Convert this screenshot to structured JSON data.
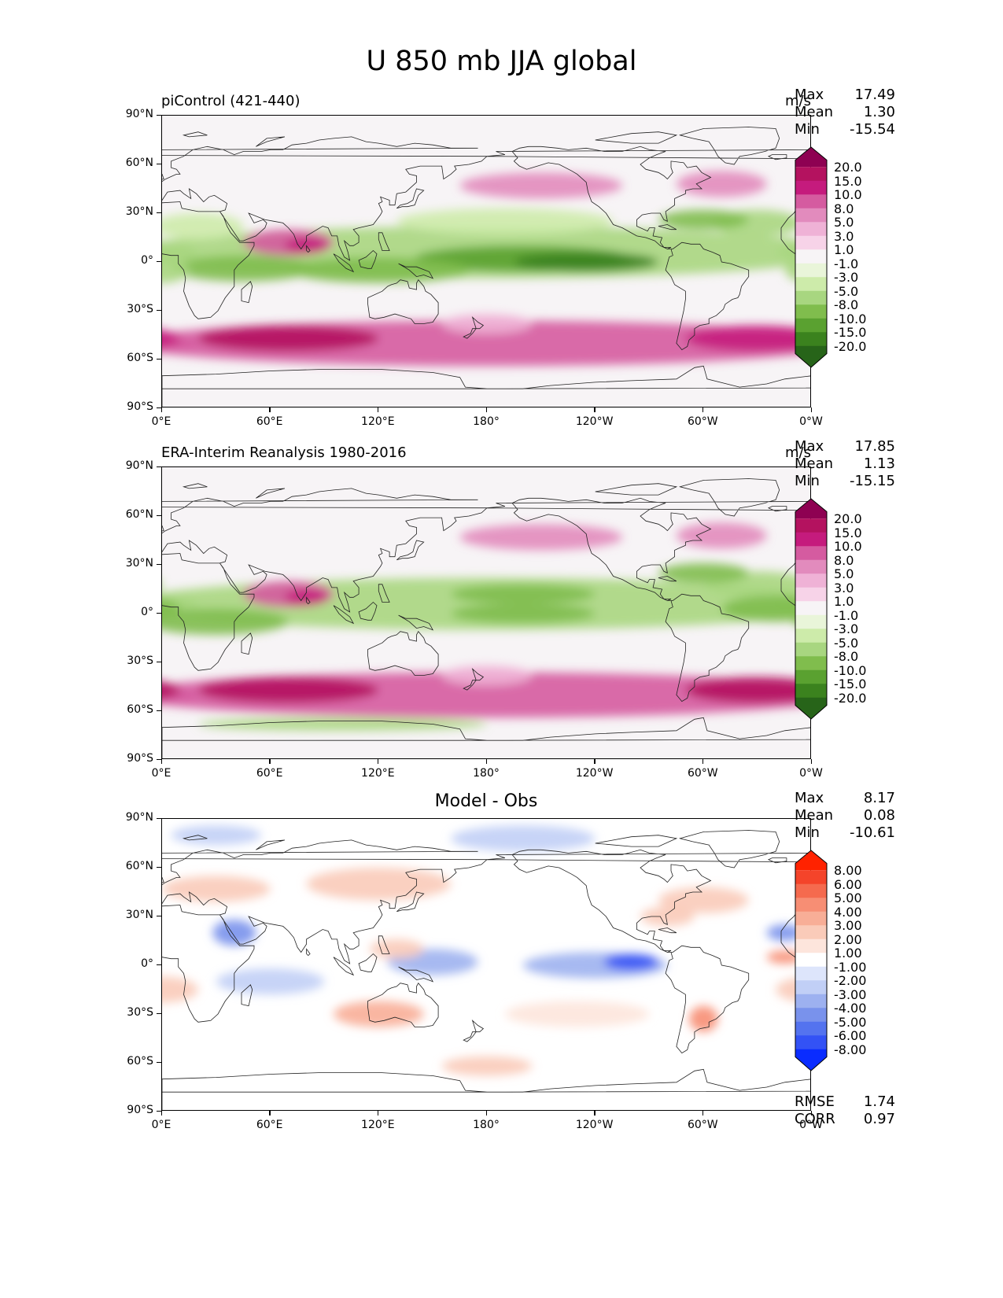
{
  "title": "U 850 mb JJA global",
  "x_ticks": [
    "0°E",
    "60°E",
    "120°E",
    "180°",
    "120°W",
    "60°W",
    "0°W"
  ],
  "y_ticks": [
    "90°N",
    "60°N",
    "30°N",
    "0°",
    "30°S",
    "60°S",
    "90°S"
  ],
  "panels": [
    {
      "id": "model",
      "title_left": "piControl (421-440)",
      "title_center": "",
      "units": "m/s",
      "stats": [
        [
          "Max",
          "17.49"
        ],
        [
          "Mean",
          "1.30"
        ],
        [
          "Min",
          "-15.54"
        ]
      ],
      "extra_stats": [],
      "colorbar": {
        "labels": [
          "20.0",
          "15.0",
          "10.0",
          "8.0",
          "5.0",
          "3.0",
          "1.0",
          "-1.0",
          "-3.0",
          "-5.0",
          "-8.0",
          "-10.0",
          "-15.0",
          "-20.0"
        ],
        "colors": [
          "#8e0152",
          "#b4125f",
          "#c51b7d",
          "#d55ba0",
          "#e28bbd",
          "#efb2d6",
          "#f7d3e8",
          "#f7f4f6",
          "#e9f5d9",
          "#cdebaa",
          "#a8d680",
          "#80bd4d",
          "#5aa130",
          "#3b821e",
          "#276419"
        ]
      }
    },
    {
      "id": "obs",
      "title_left": "ERA-Interim Reanalysis 1980-2016",
      "title_center": "",
      "units": "m/s",
      "stats": [
        [
          "Max",
          "17.85"
        ],
        [
          "Mean",
          "1.13"
        ],
        [
          "Min",
          "-15.15"
        ]
      ],
      "extra_stats": [],
      "colorbar": {
        "labels": [
          "20.0",
          "15.0",
          "10.0",
          "8.0",
          "5.0",
          "3.0",
          "1.0",
          "-1.0",
          "-3.0",
          "-5.0",
          "-8.0",
          "-10.0",
          "-15.0",
          "-20.0"
        ],
        "colors": [
          "#8e0152",
          "#b4125f",
          "#c51b7d",
          "#d55ba0",
          "#e28bbd",
          "#efb2d6",
          "#f7d3e8",
          "#f7f4f6",
          "#e9f5d9",
          "#cdebaa",
          "#a8d680",
          "#80bd4d",
          "#5aa130",
          "#3b821e",
          "#276419"
        ]
      }
    },
    {
      "id": "diff",
      "title_left": "",
      "title_center": "Model - Obs",
      "units": "",
      "stats": [
        [
          "Max",
          "8.17"
        ],
        [
          "Mean",
          "0.08"
        ],
        [
          "Min",
          "-10.61"
        ]
      ],
      "extra_stats": [
        [
          "RMSE",
          "1.74"
        ],
        [
          "CORR",
          "0.97"
        ]
      ],
      "colorbar": {
        "labels": [
          "8.00",
          "6.00",
          "5.00",
          "4.00",
          "3.00",
          "2.00",
          "1.00",
          "-1.00",
          "-2.00",
          "-3.00",
          "-4.00",
          "-5.00",
          "-6.00",
          "-8.00"
        ],
        "colors": [
          "#ff2200",
          "#f4442a",
          "#f56a4e",
          "#f78e74",
          "#f8ae97",
          "#facbb9",
          "#fde5dc",
          "#ffffff",
          "#dde5fb",
          "#c1cff6",
          "#9db1f0",
          "#7992ec",
          "#5473ef",
          "#3352f5",
          "#0a2cff"
        ]
      }
    }
  ]
}
